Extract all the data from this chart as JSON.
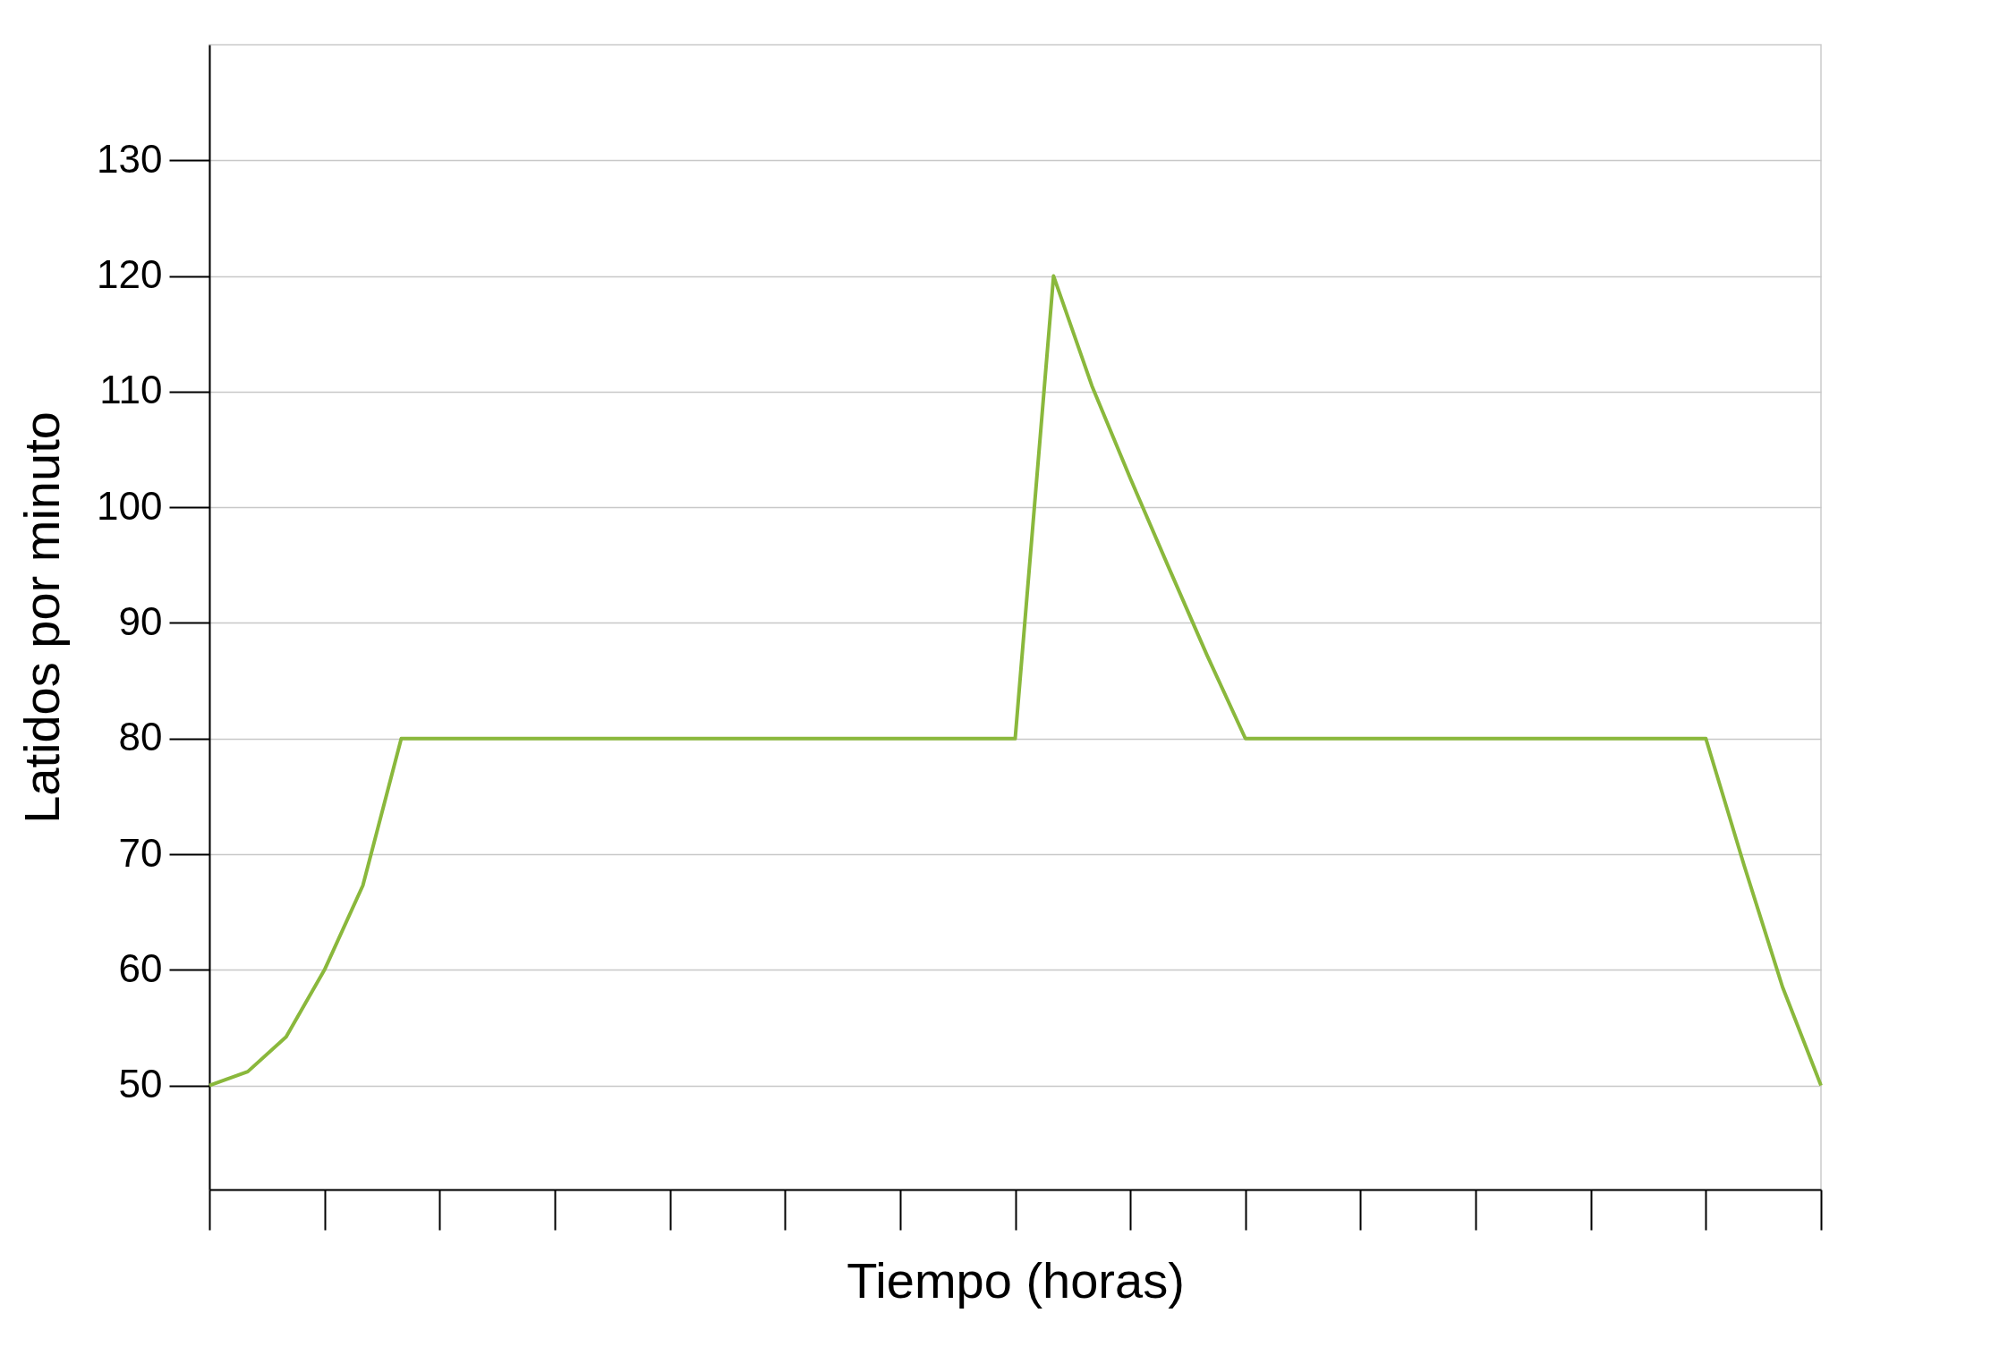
{
  "chart_data": {
    "type": "line",
    "xlabel": "Tiempo (horas)",
    "ylabel": "Latidos por minuto",
    "categories": [
      null,
      null,
      null,
      null,
      null,
      null,
      null,
      null,
      null,
      null,
      null,
      null,
      null,
      null,
      null,
      null,
      null,
      null,
      null,
      null,
      null,
      null,
      null,
      null,
      null,
      null,
      null,
      null,
      null,
      null,
      null,
      null,
      null,
      null,
      null,
      null,
      null,
      null,
      null,
      null,
      null,
      null,
      null
    ],
    "series": [
      {
        "color": "#8ab83c",
        "values": [
          50,
          51.2,
          54.2,
          60,
          67.3,
          80,
          80,
          80,
          80,
          80,
          80,
          80,
          80,
          80,
          80,
          80,
          80,
          80,
          80,
          80,
          80,
          80,
          120,
          110.5,
          102.5,
          94.8,
          87.2,
          80,
          80,
          80,
          80,
          80,
          80,
          80,
          80,
          80,
          80,
          80,
          80,
          80,
          69,
          58.5,
          50
        ]
      }
    ],
    "ylim": [
      41,
      140
    ],
    "yticks": [
      50,
      60,
      70,
      80,
      90,
      100,
      110,
      120,
      130
    ],
    "grid": "y",
    "tick_labels": "y",
    "line_style": "solid"
  }
}
